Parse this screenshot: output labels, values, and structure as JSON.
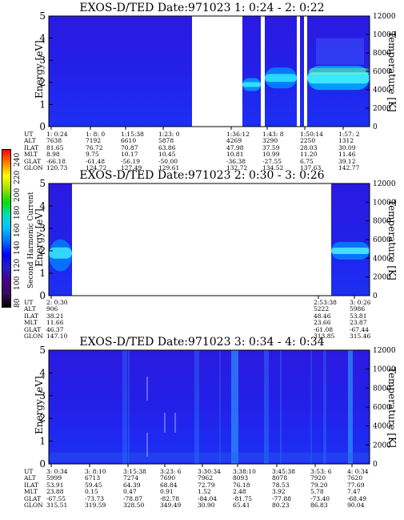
{
  "colorbar": {
    "label": "Second Harmonic Current",
    "ticks": [
      "240",
      "220",
      "200",
      "180",
      "160",
      "140",
      "120",
      "100",
      "80"
    ],
    "colors": [
      "#000000",
      "#3b0a5a",
      "#4b0082",
      "#2020c0",
      "#0000ff",
      "#0070ff",
      "#00c0ff",
      "#00e0c0",
      "#00e000",
      "#a0e000",
      "#ffff00",
      "#ff8000",
      "#ff0000"
    ]
  },
  "chart_data": [
    {
      "type": "heatmap",
      "title": "EXOS-D/TED   Date:971023  1: 0:24 - 2: 0:22",
      "ylabel": "Energy [eV]",
      "y2label": "Temperature [K]",
      "ylim": [
        0,
        5
      ],
      "y2lim": [
        0,
        12000
      ],
      "yticks": [
        "0",
        "1",
        "2",
        "3",
        "4",
        "5"
      ],
      "y2ticks": [
        "0",
        "2000",
        "4000",
        "6000",
        "8000",
        "10000",
        "12000"
      ],
      "data_gaps": [
        "1:23 - 1:36",
        "1:48 - 1:49",
        "1:50 - 1:50"
      ],
      "orbit_table": {
        "row_labels": [
          "UT",
          "ALT",
          "ILAT",
          "MLT",
          "GLAT",
          "GLON"
        ],
        "columns": [
          [
            "1: 0:24",
            "7638",
            "81.65",
            "8.98",
            "-66.18",
            "120.73"
          ],
          [
            "1: 8: 0",
            "7192",
            "76.72",
            "9.75",
            "-61.48",
            "124.72"
          ],
          [
            "1:15:38",
            "6610",
            "70.87",
            "10.17",
            "-56.19",
            "127.49"
          ],
          [
            "1:23: 0",
            "5878",
            "63.86",
            "10.45",
            "-50.00",
            "129.61"
          ],
          [
            "1:36:12",
            "4269",
            "47.98",
            "10.81",
            "-36.38",
            "132.72"
          ],
          [
            "1:43: 8",
            "3290",
            "37.59",
            "10.99",
            "-27.55",
            "134.52"
          ],
          [
            "1:50:14",
            "2250",
            "28.03",
            "11.20",
            "6.75",
            "137.63"
          ],
          [
            "1:57: 2",
            "1312",
            "30.09",
            "11.46",
            "39.12",
            "142.77"
          ]
        ]
      }
    },
    {
      "type": "heatmap",
      "title": "EXOS-D/TED   Date:971023  2: 0:30 - 3: 0:26",
      "ylabel": "Energy [eV]",
      "y2label": "Temperature [K]",
      "ylim": [
        0,
        5
      ],
      "y2lim": [
        0,
        12000
      ],
      "yticks": [
        "0",
        "1",
        "2",
        "3",
        "4",
        "5"
      ],
      "y2ticks": [
        "0",
        "2000",
        "4000",
        "6000",
        "8000",
        "10000",
        "12000"
      ],
      "data_gaps": [
        "2:03 - 2:53"
      ],
      "orbit_table": {
        "row_labels": [
          "UT",
          "ALT",
          "ILAT",
          "MLT",
          "GLAT",
          "GLON"
        ],
        "columns": [
          [
            "2: 0:30",
            "906",
            "38.21",
            "11.66",
            "46.37",
            "147.10"
          ],
          [
            "2:53:38",
            "5222",
            "48.46",
            "23.66",
            "-61.08",
            "313.85"
          ],
          [
            "3: 0:26",
            "5986",
            "53.81",
            "23.87",
            "-67.44",
            "315.46"
          ]
        ]
      }
    },
    {
      "type": "heatmap",
      "title": "EXOS-D/TED   Date:971023  3: 0:34 - 4: 0:34",
      "ylabel": "Energy [eV]",
      "y2label": "Temperature [K]",
      "ylim": [
        0,
        5
      ],
      "y2lim": [
        0,
        12000
      ],
      "yticks": [
        "0",
        "1",
        "2",
        "3",
        "4",
        "5"
      ],
      "y2ticks": [
        "0",
        "2000",
        "4000",
        "6000",
        "8000",
        "10000",
        "12000"
      ],
      "orbit_table": {
        "row_labels": [
          "UT",
          "ALT",
          "ILAT",
          "MLT",
          "GLAT",
          "GLON"
        ],
        "columns": [
          [
            "3: 0:34",
            "5999",
            "53.91",
            "23.88",
            "-67.55",
            "315.51"
          ],
          [
            "3: 8:10",
            "6713",
            "59.45",
            "0.15",
            "-73.73",
            "319.59"
          ],
          [
            "3:15:38",
            "7274",
            "64.39",
            "0.47",
            "-78.87",
            "328.50"
          ],
          [
            "3:23: 6",
            "7690",
            "68.84",
            "0.91",
            "-82.78",
            "349.49"
          ],
          [
            "3:30:34",
            "7962",
            "72.79",
            "1.52",
            "-84.04",
            "30.90"
          ],
          [
            "3:38:10",
            "8093",
            "76.18",
            "2.48",
            "-81.75",
            "65.41"
          ],
          [
            "3:45:38",
            "8078",
            "78.53",
            "3.92",
            "-77.88",
            "80.23"
          ],
          [
            "3:53: 6",
            "7920",
            "79.20",
            "5.78",
            "-73.40",
            "86.83"
          ],
          [
            "4: 0:34",
            "7620",
            "77.69",
            "7.47",
            "-68.49",
            "90.04"
          ]
        ]
      }
    }
  ]
}
